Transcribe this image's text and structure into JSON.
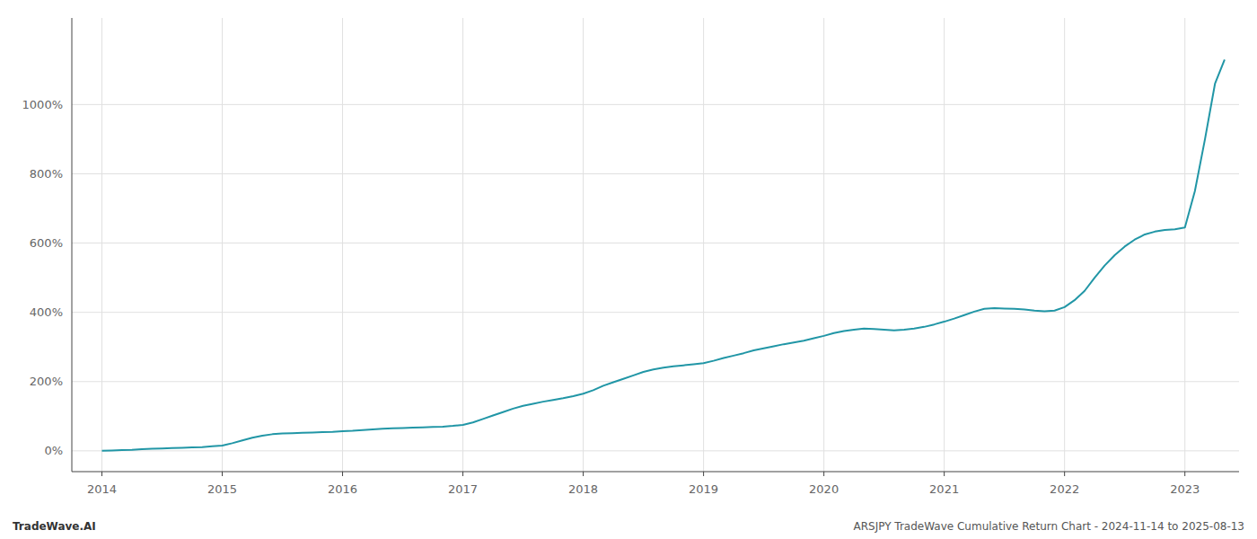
{
  "chart_data": {
    "type": "line",
    "annotations": [
      "TradeWave.AI",
      "ARSJPY TradeWave Cumulative Return Chart - 2024-11-14 to 2025-08-13"
    ],
    "color": "#2196a6",
    "grid": true,
    "x": [
      2014.0,
      2014.083,
      2014.167,
      2014.25,
      2014.333,
      2014.417,
      2014.5,
      2014.583,
      2014.667,
      2014.75,
      2014.833,
      2014.917,
      2015.0,
      2015.083,
      2015.167,
      2015.25,
      2015.333,
      2015.417,
      2015.5,
      2015.583,
      2015.667,
      2015.75,
      2015.833,
      2015.917,
      2016.0,
      2016.083,
      2016.167,
      2016.25,
      2016.333,
      2016.417,
      2016.5,
      2016.583,
      2016.667,
      2016.75,
      2016.833,
      2016.917,
      2017.0,
      2017.083,
      2017.167,
      2017.25,
      2017.333,
      2017.417,
      2017.5,
      2017.583,
      2017.667,
      2017.75,
      2017.833,
      2017.917,
      2018.0,
      2018.083,
      2018.167,
      2018.25,
      2018.333,
      2018.417,
      2018.5,
      2018.583,
      2018.667,
      2018.75,
      2018.833,
      2018.917,
      2019.0,
      2019.083,
      2019.167,
      2019.25,
      2019.333,
      2019.417,
      2019.5,
      2019.583,
      2019.667,
      2019.75,
      2019.833,
      2019.917,
      2020.0,
      2020.083,
      2020.167,
      2020.25,
      2020.333,
      2020.417,
      2020.5,
      2020.583,
      2020.667,
      2020.75,
      2020.833,
      2020.917,
      2021.0,
      2021.083,
      2021.167,
      2021.25,
      2021.333,
      2021.417,
      2021.5,
      2021.583,
      2021.667,
      2021.75,
      2021.833,
      2021.917,
      2022.0,
      2022.083,
      2022.167,
      2022.25,
      2022.333,
      2022.417,
      2022.5,
      2022.583,
      2022.667,
      2022.75,
      2022.833,
      2022.917,
      2023.0,
      2023.083,
      2023.167,
      2023.25,
      2023.33
    ],
    "values": [
      0,
      1,
      2,
      3,
      5,
      6,
      7,
      8,
      9,
      10,
      11,
      13,
      15,
      22,
      30,
      38,
      44,
      48,
      50,
      51,
      52,
      53,
      54,
      55,
      57,
      58,
      60,
      62,
      64,
      65,
      66,
      67,
      68,
      69,
      70,
      72,
      75,
      82,
      92,
      102,
      112,
      122,
      130,
      136,
      142,
      147,
      152,
      158,
      165,
      175,
      188,
      198,
      208,
      218,
      228,
      235,
      240,
      244,
      247,
      250,
      253,
      260,
      268,
      275,
      282,
      290,
      296,
      302,
      308,
      313,
      318,
      325,
      332,
      340,
      346,
      350,
      353,
      352,
      350,
      348,
      350,
      353,
      358,
      365,
      373,
      382,
      392,
      402,
      410,
      412,
      411,
      410,
      408,
      405,
      403,
      405,
      415,
      435,
      462,
      500,
      535,
      565,
      590,
      610,
      625,
      633,
      638,
      640,
      645,
      750,
      900,
      1060,
      1130
    ],
    "xlim": [
      2013.75,
      2023.45
    ],
    "ylim": [
      -60,
      1250
    ],
    "xticks": [
      2014,
      2015,
      2016,
      2017,
      2018,
      2019,
      2020,
      2021,
      2022,
      2023
    ],
    "yticks": [
      {
        "value": 0,
        "label": "0%"
      },
      {
        "value": 200,
        "label": "200%"
      },
      {
        "value": 400,
        "label": "400%"
      },
      {
        "value": 600,
        "label": "600%"
      },
      {
        "value": 800,
        "label": "800%"
      },
      {
        "value": 1000,
        "label": "1000%"
      }
    ]
  }
}
